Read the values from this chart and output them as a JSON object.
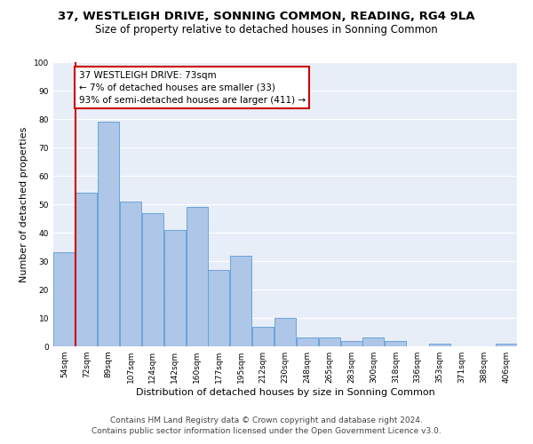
{
  "title1": "37, WESTLEIGH DRIVE, SONNING COMMON, READING, RG4 9LA",
  "title2": "Size of property relative to detached houses in Sonning Common",
  "xlabel": "Distribution of detached houses by size in Sonning Common",
  "ylabel": "Number of detached properties",
  "footer1": "Contains HM Land Registry data © Crown copyright and database right 2024.",
  "footer2": "Contains public sector information licensed under the Open Government Licence v3.0.",
  "annotation_title": "37 WESTLEIGH DRIVE: 73sqm",
  "annotation_line1": "← 7% of detached houses are smaller (33)",
  "annotation_line2": "93% of semi-detached houses are larger (411) →",
  "bar_labels": [
    "54sqm",
    "72sqm",
    "89sqm",
    "107sqm",
    "124sqm",
    "142sqm",
    "160sqm",
    "177sqm",
    "195sqm",
    "212sqm",
    "230sqm",
    "248sqm",
    "265sqm",
    "283sqm",
    "300sqm",
    "318sqm",
    "336sqm",
    "353sqm",
    "371sqm",
    "388sqm",
    "406sqm"
  ],
  "bar_values": [
    33,
    54,
    79,
    51,
    47,
    41,
    49,
    27,
    32,
    7,
    10,
    3,
    3,
    2,
    3,
    2,
    0,
    1,
    0,
    0,
    1
  ],
  "bar_color": "#aec6e8",
  "bar_edgecolor": "#5a9bd5",
  "redline_index": 1,
  "ylim": [
    0,
    100
  ],
  "yticks": [
    0,
    10,
    20,
    30,
    40,
    50,
    60,
    70,
    80,
    90,
    100
  ],
  "bg_color": "#e8eef8",
  "grid_color": "#ffffff",
  "annotation_color": "#cc0000",
  "title_fontsize": 9.5,
  "subtitle_fontsize": 8.5,
  "axis_label_fontsize": 8,
  "ylabel_fontsize": 8,
  "tick_fontsize": 6.5,
  "footer_fontsize": 6.5,
  "annotation_fontsize": 7.5
}
